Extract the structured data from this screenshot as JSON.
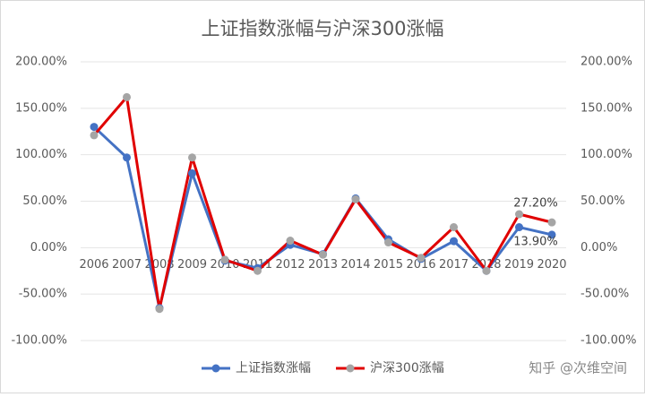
{
  "chart_data": {
    "type": "line",
    "title": "上证指数涨幅与沪深300涨幅",
    "categories": [
      "2006",
      "2007",
      "2008",
      "2009",
      "2010",
      "2011",
      "2012",
      "2013",
      "2014",
      "2015",
      "2016",
      "2017",
      "2018",
      "2019",
      "2020"
    ],
    "series": [
      {
        "name": "上证指数涨幅",
        "color": "#4472c4",
        "marker_color": "#4472c4",
        "values": [
          130,
          97,
          -65,
          80,
          -14,
          -22,
          3,
          -7,
          53,
          9,
          -12,
          7,
          -25,
          22,
          13.9
        ],
        "value_labels": [
          null,
          null,
          null,
          null,
          null,
          null,
          null,
          null,
          null,
          null,
          null,
          null,
          null,
          null,
          "13.90%"
        ]
      },
      {
        "name": "沪深300涨幅",
        "color": "#e00000",
        "marker_color": "#a5a5a5",
        "values": [
          121,
          162,
          -66,
          97,
          -13,
          -25,
          7.5,
          -7.6,
          52,
          5.6,
          -11,
          22,
          -25,
          36,
          27.2
        ],
        "value_labels": [
          null,
          null,
          null,
          null,
          null,
          null,
          null,
          null,
          null,
          null,
          null,
          null,
          null,
          null,
          "27.20%"
        ]
      }
    ],
    "ylim": [
      -100,
      200
    ],
    "yticks": [
      {
        "value": -100,
        "label": "-100.00%"
      },
      {
        "value": -50,
        "label": "-50.00%"
      },
      {
        "value": 0,
        "label": "0.00%"
      },
      {
        "value": 50,
        "label": "50.00%"
      },
      {
        "value": 100,
        "label": "100.00%"
      },
      {
        "value": 150,
        "label": "150.00%"
      },
      {
        "value": 200,
        "label": "200.00%"
      }
    ],
    "y2lim": [
      -100,
      200
    ],
    "y2ticks": [
      {
        "value": -100,
        "label": "-100.00%"
      },
      {
        "value": -50,
        "label": "-50.00%"
      },
      {
        "value": 0,
        "label": "0.00%"
      },
      {
        "value": 50,
        "label": "50.00%"
      },
      {
        "value": 100,
        "label": "100.00%"
      },
      {
        "value": 150,
        "label": "150.00%"
      },
      {
        "value": 200,
        "label": "200.00%"
      }
    ],
    "grid": true,
    "legend": "bottom",
    "watermark": "知乎 @次维空间"
  }
}
